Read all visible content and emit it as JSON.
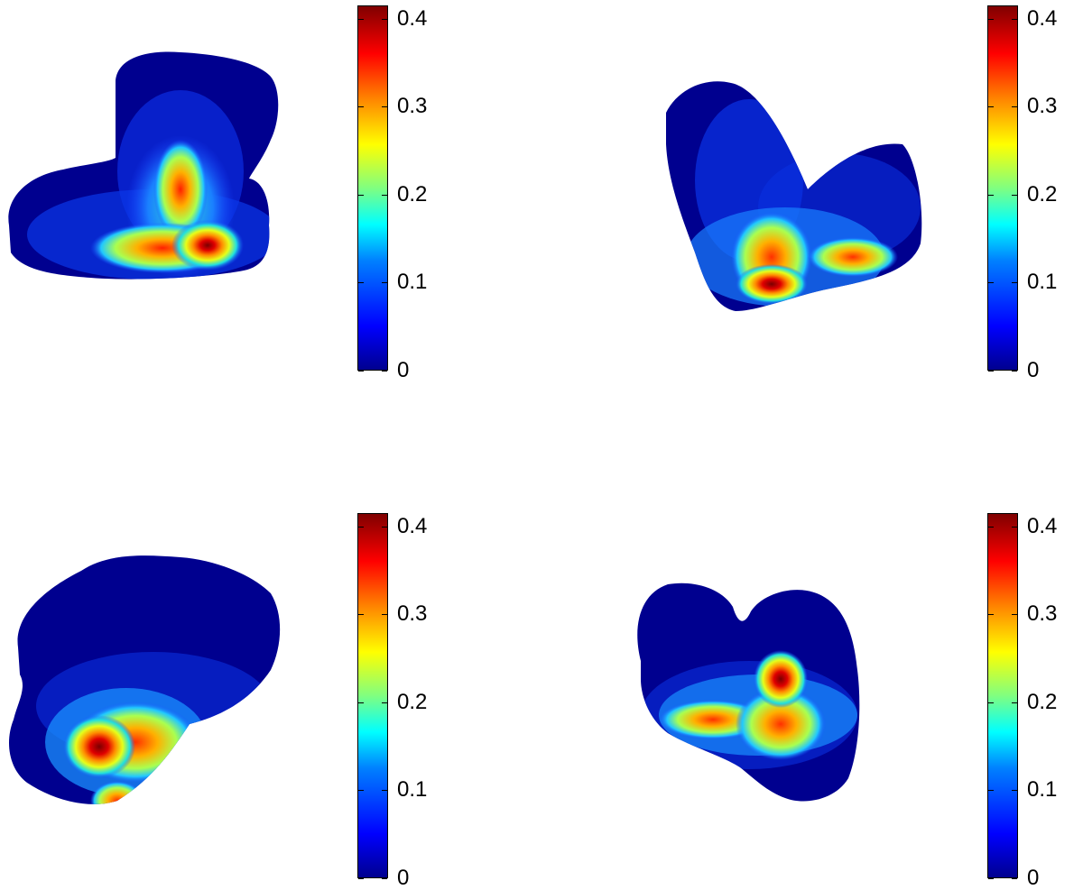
{
  "figure": {
    "panels": [
      {
        "id": "top-left",
        "view": "view-1"
      },
      {
        "id": "top-right",
        "view": "view-2"
      },
      {
        "id": "bottom-left",
        "view": "view-3"
      },
      {
        "id": "bottom-right",
        "view": "view-4"
      }
    ],
    "colorbar": {
      "colormap": "jet",
      "range": [
        0,
        0.415
      ],
      "ticks": [
        {
          "value": 0,
          "label": "0"
        },
        {
          "value": 0.1,
          "label": "0.1"
        },
        {
          "value": 0.2,
          "label": "0.2"
        },
        {
          "value": 0.3,
          "label": "0.3"
        },
        {
          "value": 0.4,
          "label": "0.4"
        }
      ]
    }
  },
  "colors": {
    "low": "#00008f",
    "high": "#800000",
    "background": "#ffffff"
  }
}
